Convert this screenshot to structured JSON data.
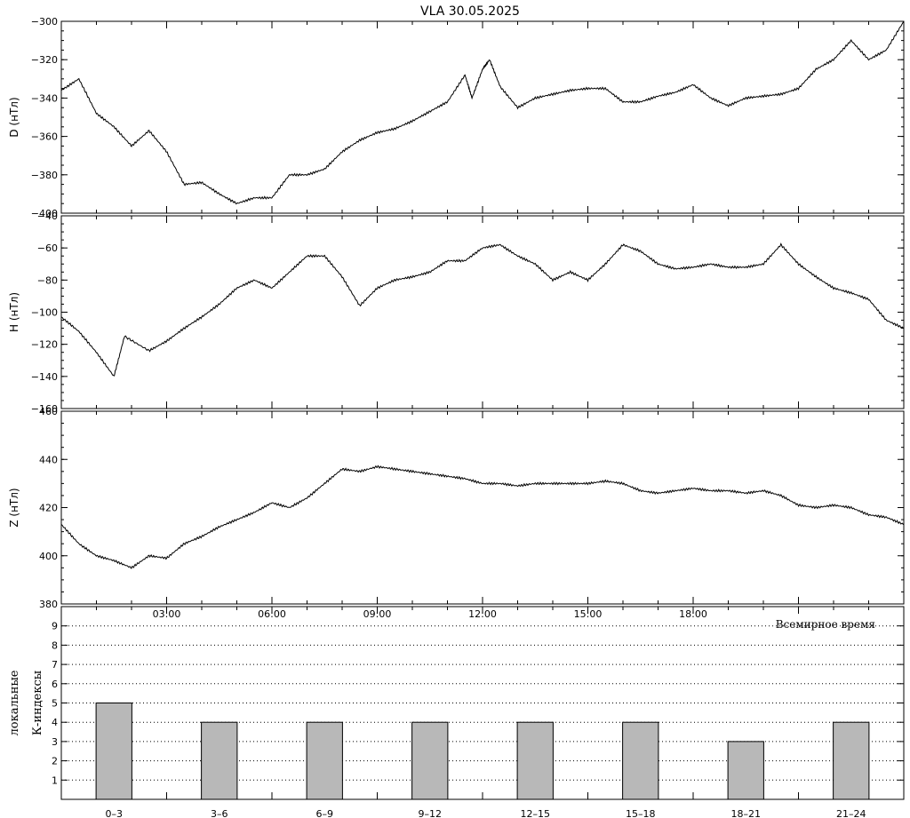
{
  "chart_data": {
    "title": "VLA   30.05.2025",
    "panels": [
      {
        "id": "D",
        "type": "line",
        "ylabel": "D (нТл)",
        "ylim": [
          -400,
          -300
        ],
        "yticks": [
          -400,
          -380,
          -360,
          -340,
          -320,
          -300
        ],
        "x_hours": [
          0,
          0.5,
          1.0,
          1.5,
          2.0,
          2.5,
          3.0,
          3.5,
          4.0,
          4.5,
          5.0,
          5.5,
          6.0,
          6.5,
          7.0,
          7.5,
          8.0,
          8.5,
          9.0,
          9.5,
          10.0,
          10.5,
          11.0,
          11.5,
          11.7,
          12.0,
          12.2,
          12.5,
          13.0,
          13.5,
          14.0,
          14.5,
          15.0,
          15.5,
          16.0,
          16.5,
          17.0,
          17.5,
          18.0,
          18.5,
          19.0,
          19.5,
          20.0,
          20.5,
          21.0,
          21.5,
          22.0,
          22.5,
          23.0,
          23.5,
          24.0
        ],
        "values": [
          -336,
          -330,
          -348,
          -355,
          -365,
          -357,
          -368,
          -385,
          -384,
          -390,
          -395,
          -392,
          -392,
          -380,
          -380,
          -377,
          -368,
          -362,
          -358,
          -356,
          -352,
          -347,
          -342,
          -328,
          -340,
          -325,
          -320,
          -334,
          -345,
          -340,
          -338,
          -336,
          -335,
          -335,
          -342,
          -342,
          -339,
          -337,
          -333,
          -340,
          -344,
          -340,
          -339,
          -338,
          -335,
          -325,
          -320,
          -310,
          -320,
          -315,
          -300
        ]
      },
      {
        "id": "H",
        "type": "line",
        "ylabel": "H (нТл)",
        "ylim": [
          -160,
          -40
        ],
        "yticks": [
          -160,
          -140,
          -120,
          -100,
          -80,
          -60,
          -40
        ],
        "x_hours": [
          0,
          0.5,
          1.0,
          1.5,
          1.8,
          2.5,
          3.0,
          3.5,
          4.0,
          4.5,
          5.0,
          5.5,
          6.0,
          6.5,
          7.0,
          7.5,
          8.0,
          8.5,
          9.0,
          9.5,
          10.0,
          10.5,
          11.0,
          11.5,
          12.0,
          12.5,
          13.0,
          13.5,
          14.0,
          14.5,
          15.0,
          15.5,
          16.0,
          16.5,
          17.0,
          17.5,
          18.0,
          18.5,
          19.0,
          19.5,
          20.0,
          20.5,
          21.0,
          21.5,
          22.0,
          22.5,
          23.0,
          23.5,
          24.0
        ],
        "values": [
          -103,
          -112,
          -125,
          -140,
          -115,
          -124,
          -118,
          -110,
          -103,
          -95,
          -85,
          -80,
          -85,
          -75,
          -65,
          -65,
          -78,
          -96,
          -85,
          -80,
          -78,
          -75,
          -68,
          -68,
          -60,
          -58,
          -65,
          -70,
          -80,
          -75,
          -80,
          -70,
          -58,
          -62,
          -70,
          -73,
          -72,
          -70,
          -72,
          -72,
          -70,
          -58,
          -70,
          -78,
          -85,
          -88,
          -92,
          -105,
          -110
        ]
      },
      {
        "id": "Z",
        "type": "line",
        "ylabel": "Z (нТл)",
        "ylim": [
          380,
          460
        ],
        "yticks": [
          380,
          400,
          420,
          440,
          460
        ],
        "x_hours": [
          0,
          0.5,
          1.0,
          1.5,
          2.0,
          2.5,
          3.0,
          3.5,
          4.0,
          4.5,
          5.0,
          5.5,
          6.0,
          6.5,
          7.0,
          7.5,
          8.0,
          8.5,
          9.0,
          9.5,
          10.0,
          10.5,
          11.0,
          11.5,
          12.0,
          12.5,
          13.0,
          13.5,
          14.0,
          14.5,
          15.0,
          15.5,
          16.0,
          16.5,
          17.0,
          17.5,
          18.0,
          18.5,
          19.0,
          19.5,
          20.0,
          20.5,
          21.0,
          21.5,
          22.0,
          22.5,
          23.0,
          23.5,
          24.0
        ],
        "values": [
          413,
          405,
          400,
          398,
          395,
          400,
          399,
          405,
          408,
          412,
          415,
          418,
          422,
          420,
          424,
          430,
          436,
          435,
          437,
          436,
          435,
          434,
          433,
          432,
          430,
          430,
          429,
          430,
          430,
          430,
          430,
          431,
          430,
          427,
          426,
          427,
          428,
          427,
          427,
          426,
          427,
          425,
          421,
          420,
          421,
          420,
          417,
          416,
          413
        ]
      },
      {
        "id": "K",
        "type": "bar",
        "ylabel_lines": [
          "локальные",
          "К-индексы"
        ],
        "ylim": [
          0,
          10
        ],
        "yticks": [
          1,
          2,
          3,
          4,
          5,
          6,
          7,
          8,
          9
        ],
        "grid": true,
        "categories": [
          "0–3",
          "3–6",
          "6–9",
          "9–12",
          "12–15",
          "15–18",
          "18–21",
          "21–24"
        ],
        "values": [
          5,
          4,
          4,
          4,
          4,
          4,
          3,
          4
        ]
      }
    ],
    "xaxis": {
      "xlim_hours": [
        0,
        24
      ],
      "time_labels": [
        {
          "hour": 3,
          "label": "03:00"
        },
        {
          "hour": 6,
          "label": "06:00"
        },
        {
          "hour": 9,
          "label": "09:00"
        },
        {
          "hour": 12,
          "label": "12:00"
        },
        {
          "hour": 15,
          "label": "15:00"
        },
        {
          "hour": 18,
          "label": "18:00"
        }
      ],
      "xlabel": "Всемирное время"
    },
    "colors": {
      "line": "#000000",
      "bar_fill": "#b8b8b8",
      "grid": "#000000"
    }
  }
}
